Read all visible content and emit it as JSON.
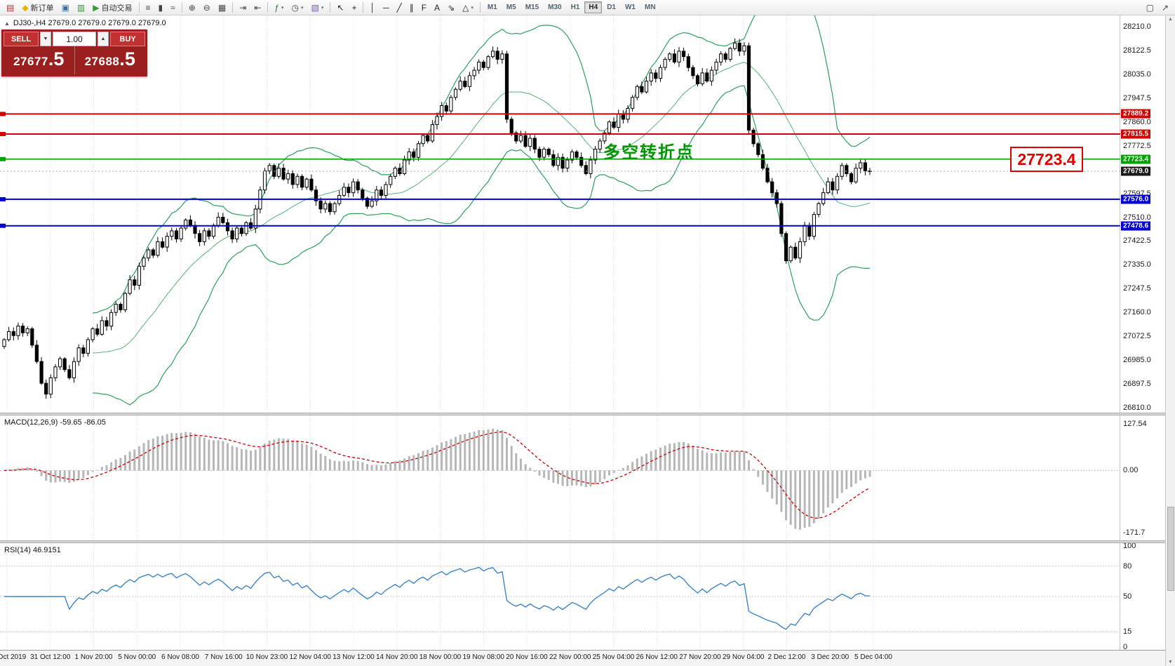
{
  "toolbar": {
    "groups": [
      {
        "items": [
          {
            "name": "new-chart-icon",
            "glyph": "▤",
            "color": "#b03030"
          },
          {
            "name": "new-order-button",
            "glyph": "◆",
            "color": "#e8b400",
            "label": "新订单"
          },
          {
            "name": "market-watch-icon",
            "glyph": "▣",
            "color": "#3a6ea5"
          },
          {
            "name": "terminal-icon",
            "glyph": "▥",
            "color": "#3a8a3a"
          },
          {
            "name": "autotrading-button",
            "glyph": "▶",
            "color": "#2f9e2f",
            "label": "自动交易"
          }
        ]
      },
      {
        "items": [
          {
            "name": "bar-chart-icon",
            "glyph": "≡",
            "color": "#444"
          },
          {
            "name": "candlestick-chart-icon",
            "glyph": "▮",
            "color": "#444"
          },
          {
            "name": "line-chart-icon",
            "glyph": "≈",
            "color": "#444"
          }
        ]
      },
      {
        "items": [
          {
            "name": "zoom-in-icon",
            "glyph": "⊕",
            "color": "#444"
          },
          {
            "name": "zoom-out-icon",
            "glyph": "⊖",
            "color": "#444"
          },
          {
            "name": "tile-windows-icon",
            "glyph": "▦",
            "color": "#444"
          }
        ]
      },
      {
        "items": [
          {
            "name": "auto-scroll-icon",
            "glyph": "⇥",
            "color": "#444"
          },
          {
            "name": "chart-shift-icon",
            "glyph": "⇤",
            "color": "#444"
          }
        ]
      },
      {
        "items": [
          {
            "name": "indicators-icon",
            "glyph": "ƒ",
            "color": "#2f7e2f",
            "caret": true
          },
          {
            "name": "periods-icon",
            "glyph": "◷",
            "color": "#444",
            "caret": true
          },
          {
            "name": "templates-icon",
            "glyph": "▧",
            "color": "#7a5ab0",
            "caret": true
          }
        ]
      },
      {
        "items": [
          {
            "name": "cursor-icon",
            "glyph": "↖",
            "color": "#222"
          },
          {
            "name": "crosshair-icon",
            "glyph": "+",
            "color": "#222"
          }
        ]
      },
      {
        "items": [
          {
            "name": "vertical-line-icon",
            "glyph": "│",
            "color": "#222"
          },
          {
            "name": "horizontal-line-icon",
            "glyph": "─",
            "color": "#222"
          },
          {
            "name": "trendline-icon",
            "glyph": "╱",
            "color": "#222"
          },
          {
            "name": "channel-icon",
            "glyph": "∥",
            "color": "#222"
          },
          {
            "name": "fibonacci-icon",
            "glyph": "F",
            "color": "#222"
          },
          {
            "name": "text-icon",
            "glyph": "A",
            "color": "#222"
          },
          {
            "name": "arrow-tool-icon",
            "glyph": "⇘",
            "color": "#222"
          },
          {
            "name": "shapes-icon",
            "glyph": "△",
            "color": "#222",
            "caret": true
          }
        ]
      }
    ],
    "timeframes": [
      "M1",
      "M5",
      "M15",
      "M30",
      "H1",
      "H4",
      "D1",
      "W1",
      "MN"
    ],
    "active_timeframe": "H4",
    "right_icons": [
      {
        "name": "new-window-icon",
        "glyph": "▢",
        "color": "#444"
      },
      {
        "name": "pointer-icon",
        "glyph": "↗",
        "color": "#444"
      }
    ]
  },
  "symbol_line": "DJ30-,H4  27679.0 27679.0 27679.0 27679.0",
  "trade_panel": {
    "sell_label": "SELL",
    "buy_label": "BUY",
    "volume": "1.00",
    "sell_price_main": "27677",
    "sell_price_big": ".5",
    "buy_price_main": "27688",
    "buy_price_big": ".5"
  },
  "annotation": "多空转折点",
  "price_callout": "27723.4",
  "current_price": "27679.0",
  "axis": {
    "ticks": [
      "28210.0",
      "28122.5",
      "28035.0",
      "27947.5",
      "27860.0",
      "27772.5",
      "27685.0",
      "27597.5",
      "27510.0",
      "27422.5",
      "27335.0",
      "27247.5",
      "27160.0",
      "27072.5",
      "26985.0",
      "26897.5",
      "26810.0"
    ]
  },
  "levels": [
    {
      "value": 27889.2,
      "label": "27889.2",
      "color": "#d40000"
    },
    {
      "value": 27815.5,
      "label": "27815.5",
      "color": "#d40000"
    },
    {
      "value": 27723.4,
      "label": "27723.4",
      "color": "#00a000"
    },
    {
      "value": 27576.0,
      "label": "27576.0",
      "color": "#0000d4"
    },
    {
      "value": 27478.6,
      "label": "27478.6",
      "color": "#0000d4"
    }
  ],
  "macd_panel": {
    "label": "MACD(12,26,9) -59.65 -86.05",
    "axis_labels": [
      "127.54",
      "0.00",
      "-171.7"
    ],
    "axis_values": [
      127.54,
      0.0,
      -171.7
    ]
  },
  "rsi_panel": {
    "label": "RSI(14) 46.9151",
    "axis_labels": [
      "100",
      "80",
      "50",
      "15",
      "0"
    ],
    "axis_values": [
      100,
      80,
      50,
      15,
      0
    ],
    "level_lines": [
      80,
      50,
      15
    ]
  },
  "time_axis": [
    "30 Oct 2019",
    "31 Oct 12:00",
    "1 Nov 20:00",
    "5 Nov 00:00",
    "6 Nov 08:00",
    "7 Nov 16:00",
    "10 Nov 23:00",
    "12 Nov 04:00",
    "13 Nov 12:00",
    "14 Nov 20:00",
    "18 Nov 00:00",
    "19 Nov 08:00",
    "20 Nov 16:00",
    "22 Nov 00:00",
    "25 Nov 04:00",
    "26 Nov 12:00",
    "27 Nov 20:00",
    "29 Nov 04:00",
    "2 Dec 12:00",
    "3 Dec 20:00",
    "5 Dec 04:00"
  ],
  "chart_data": {
    "type": "candlestick",
    "symbol": "DJ30-",
    "timeframe": "H4",
    "current_ohlc": [
      27679.0,
      27679.0,
      27679.0,
      27679.0
    ],
    "ylim": [
      26810,
      28210
    ],
    "closes": [
      27060,
      27090,
      27075,
      27110,
      27085,
      27100,
      27040,
      26980,
      26900,
      26860,
      26920,
      26960,
      26990,
      26950,
      26920,
      26980,
      27030,
      27010,
      27060,
      27100,
      27080,
      27130,
      27110,
      27160,
      27190,
      27170,
      27230,
      27280,
      27260,
      27330,
      27360,
      27390,
      27370,
      27420,
      27400,
      27440,
      27460,
      27430,
      27470,
      27500,
      27480,
      27450,
      27420,
      27460,
      27440,
      27480,
      27510,
      27490,
      27460,
      27430,
      27470,
      27450,
      27490,
      27470,
      27540,
      27610,
      27680,
      27700,
      27660,
      27690,
      27650,
      27670,
      27630,
      27660,
      27620,
      27650,
      27610,
      27570,
      27540,
      27560,
      27530,
      27560,
      27590,
      27620,
      27600,
      27640,
      27610,
      27580,
      27550,
      27570,
      27610,
      27590,
      27630,
      27660,
      27690,
      27670,
      27720,
      27750,
      27730,
      27780,
      27810,
      27790,
      27850,
      27880,
      27920,
      27900,
      27950,
      27980,
      28010,
      27990,
      28030,
      28050,
      28080,
      28060,
      28100,
      28120,
      28090,
      28110,
      27870,
      27820,
      27790,
      27810,
      27770,
      27800,
      27760,
      27730,
      27760,
      27740,
      27700,
      27730,
      27690,
      27720,
      27750,
      27730,
      27700,
      27670,
      27720,
      27760,
      27790,
      27820,
      27860,
      27840,
      27890,
      27870,
      27910,
      27950,
      27990,
      27970,
      28010,
      28040,
      28020,
      28060,
      28090,
      28110,
      28080,
      28120,
      28100,
      28060,
      28030,
      28000,
      28040,
      28010,
      28050,
      28080,
      28110,
      28090,
      28130,
      28150,
      28120,
      28140,
      27830,
      27780,
      27740,
      27690,
      27640,
      27600,
      27560,
      27450,
      27350,
      27400,
      27360,
      27420,
      27480,
      27440,
      27520,
      27560,
      27600,
      27640,
      27610,
      27660,
      27700,
      27670,
      27640,
      27690,
      27710,
      27680,
      27679
    ],
    "bollinger": {
      "period": 20,
      "deviation": 2,
      "color": "#2ca05a"
    },
    "macd": {
      "fast": 12,
      "slow": 26,
      "signal": 9,
      "value": -59.65,
      "signal_value": -86.05,
      "ylim": [
        -185,
        140
      ]
    },
    "rsi": {
      "period": 14,
      "value": 46.9151,
      "color": "#3d85c8"
    }
  }
}
